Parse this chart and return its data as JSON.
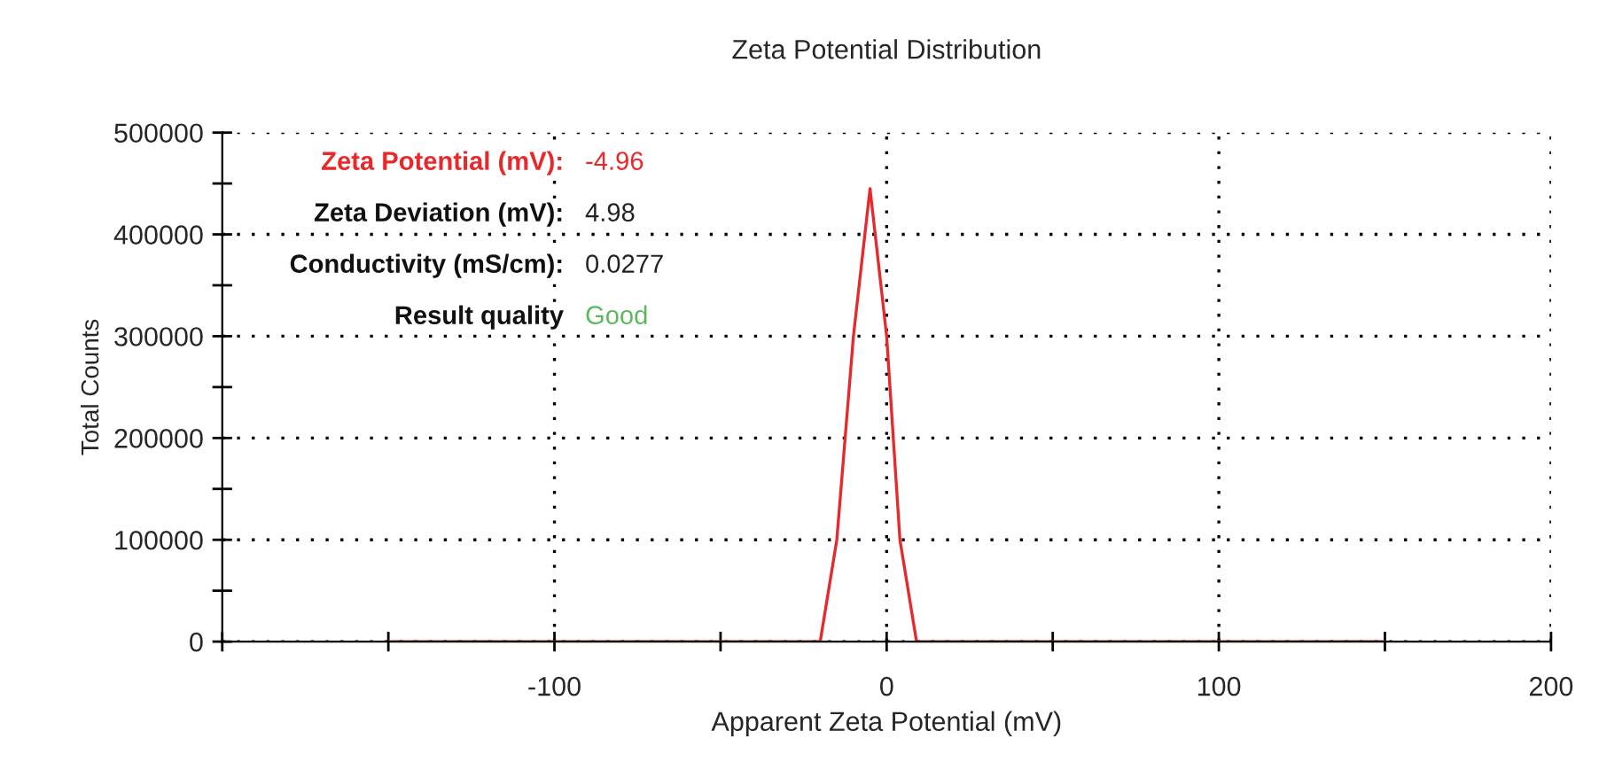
{
  "chart_data": {
    "type": "line",
    "title": "Zeta Potential Distribution",
    "xlabel": "Apparent Zeta Potential (mV)",
    "ylabel": "Total Counts",
    "series": [
      {
        "color": "#e8282b",
        "x": [
          -150,
          -20,
          -15,
          -10,
          -5,
          0,
          4,
          9,
          150
        ],
        "values": [
          0,
          0,
          100000,
          300000,
          445000,
          300000,
          100000,
          0,
          0
        ]
      }
    ],
    "xlim": [
      -200,
      200
    ],
    "xticks": [
      {
        "value": -200,
        "label": null
      },
      {
        "value": -150,
        "label": null
      },
      -100,
      {
        "value": -50,
        "label": null
      },
      0,
      {
        "value": 50,
        "label": null
      },
      100,
      {
        "value": 150,
        "label": null
      },
      200
    ],
    "ylim": [
      0,
      500000
    ],
    "yticks": [
      0,
      {
        "value": 50000,
        "label": null
      },
      100000,
      {
        "value": 150000,
        "label": null
      },
      200000,
      {
        "value": 250000,
        "label": null
      },
      300000,
      {
        "value": 350000,
        "label": null
      },
      400000,
      {
        "value": 450000,
        "label": null
      },
      500000
    ],
    "grid": true,
    "line_style": "solid",
    "marker": "none",
    "annotations": [
      "Zeta Potential (mV):",
      "-4.96",
      "Zeta Deviation (mV):",
      "4.98",
      "Conductivity (mS/cm):",
      "0.0277",
      "Result quality",
      "Good"
    ]
  }
}
